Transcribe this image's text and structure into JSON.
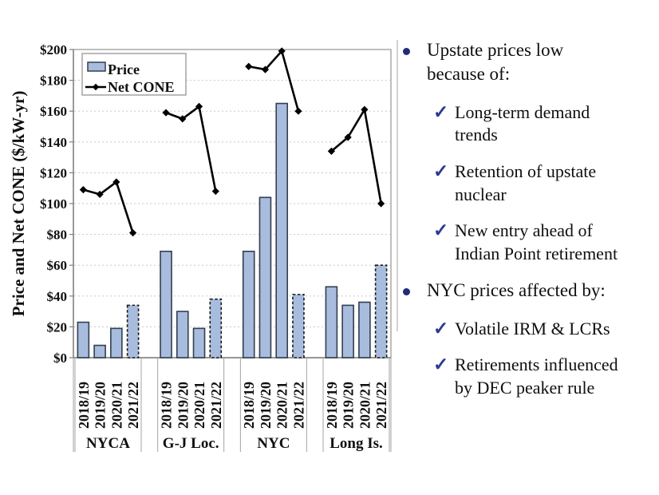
{
  "panel": {
    "bullets": [
      {
        "text": "Upstate prices low\nbecause of:",
        "checks": [
          "Long-term demand\ntrends",
          "Retention of upstate\nnuclear",
          "New entry ahead of\nIndian Point retirement"
        ]
      },
      {
        "text": "NYC prices affected by:",
        "checks": [
          "Volatile IRM & LCRs",
          "Retirements influenced\nby DEC peaker rule"
        ]
      }
    ]
  },
  "chart_data": {
    "type": "bar+line",
    "title": "",
    "ylabel": "Price and Net CONE ($/kW-yr)",
    "xlabel": "",
    "ylim": [
      0,
      200
    ],
    "ytick_step": 20,
    "ytick_labels": [
      "$0",
      "$20",
      "$40",
      "$60",
      "$80",
      "$100",
      "$120",
      "$140",
      "$160",
      "$180",
      "$200"
    ],
    "grid": true,
    "legend_position": "top-left",
    "legend": [
      {
        "label": "Price",
        "type": "bar"
      },
      {
        "label": "Net CONE",
        "type": "line"
      }
    ],
    "categories": [
      "2018/19",
      "2019/20",
      "2020/21",
      "2021/22"
    ],
    "dashed_category": "2021/22",
    "groups": [
      {
        "name": "NYCA",
        "price": [
          23,
          8,
          19,
          34
        ],
        "net_cone": [
          109,
          106,
          114,
          81
        ]
      },
      {
        "name": "G-J Loc.",
        "price": [
          69,
          30,
          19,
          38
        ],
        "net_cone": [
          159,
          155,
          163,
          108
        ]
      },
      {
        "name": "NYC",
        "price": [
          69,
          104,
          165,
          41
        ],
        "net_cone": [
          189,
          187,
          199,
          160
        ]
      },
      {
        "name": "Long Is.",
        "price": [
          46,
          34,
          36,
          60
        ],
        "net_cone": [
          134,
          143,
          161,
          100
        ]
      }
    ]
  },
  "colors": {
    "bar_fill": "#a8bcde",
    "bar_border": "#333f50",
    "bar_border_dashed": "#1a1a1a",
    "line": "#000000",
    "grid": "#c8c8c8",
    "plot_border": "#a3a3a3",
    "axis": "#7f7f7f",
    "divider": "#c4c4c4",
    "bullet": "#1e2d78",
    "check": "#2b3a94",
    "text": "#0f0f0f"
  }
}
